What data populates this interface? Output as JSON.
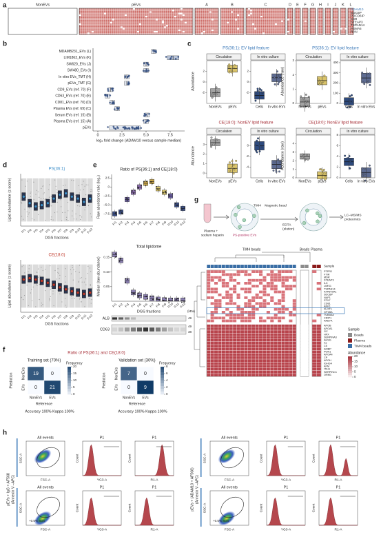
{
  "panel_labels": [
    "a",
    "b",
    "c",
    "d",
    "e",
    "f",
    "g",
    "h"
  ],
  "a": {
    "groups": [
      "NonEVs",
      "pEVs",
      "A",
      "B",
      "C",
      "D",
      "E",
      "F",
      "G",
      "H",
      "I",
      "J",
      "K",
      "L"
    ],
    "genes": [
      "ADAM10",
      "SDCBP",
      "PDCD6IP",
      "CD9",
      "STEAP3",
      "TSPAN14",
      "PSMA5",
      "RAN"
    ]
  },
  "b": {
    "categories": [
      "MDAMB231_EVs (L)",
      "LIM1863_EVs (K)",
      "SW620_EVs (J)",
      "SW480_EVs (I)",
      "In vitro EVs_TMT (H)",
      "pEVs_TMT (G)",
      "CD9_EVs (ref. 70) (F)",
      "CD63_EVs (ref. 70) (E)",
      "CD81_EVs (ref. 70) (D)",
      "Plasma EVs (ref. 69) (C)",
      "Serum EVs (ref. 15) (B)",
      "Plasma EVs (ref. 15) (A)",
      "pEVs"
    ],
    "values": [
      5.8,
      7.8,
      5.0,
      5.0,
      3.0,
      3.0,
      1.3,
      1.0,
      1.5,
      2.0,
      5.1,
      5.0,
      2.8
    ],
    "xlim": [
      -0.5,
      9
    ],
    "xticks": [
      0,
      2.5,
      {
        "value": 5,
        "label": "5.0"
      },
      7.5
    ],
    "xlabel": "log₂ fold change (ADAM10 versus sample median)"
  },
  "c": {
    "plots": [
      {
        "title": "PS(36:1): EV lipid feature",
        "title_color": "#3a78b8",
        "ylabel": "Abundance",
        "facets": [
          {
            "name": "Circulation",
            "groups": [
              "NonEVs",
              "pEVs"
            ],
            "values": [
              -2.0,
              2.5
            ],
            "colors": [
              "#a3a3a3",
              "#d9c36a"
            ],
            "ylim": [
              -4,
              4
            ],
            "yticks": [
              -2,
              0,
              2
            ]
          },
          {
            "name": "In vitro culture",
            "groups": [
              "Cells",
              "In vitro EVs"
            ],
            "values": [
              -2.5,
              0.8
            ],
            "colors": [
              "#2e4a7d",
              "#5d6b91"
            ],
            "ylim": [
              -4,
              4
            ],
            "yticks": [
              -2,
              0,
              2
            ]
          }
        ]
      },
      {
        "title": "PS(36:1): EV lipid feature",
        "title_color": "#3a78b8",
        "ylabel": "Abundance (raw)",
        "facets": [
          {
            "name": "Circulation",
            "groups": [
              "NonEVs",
              "pEVs"
            ],
            "values": [
              0.1,
              1.6
            ],
            "colors": [
              "#a3a3a3",
              "#d9c36a"
            ],
            "ylim": [
              0,
              3
            ],
            "yticks": [
              0,
              1,
              2,
              3
            ]
          },
          {
            "name": "In vitro culture",
            "groups": [
              "Cells",
              "In vitro EVs"
            ],
            "values": [
              20,
              250
            ],
            "colors": [
              "#2e4a7d",
              "#5d6b91"
            ],
            "ylim": [
              0,
              420
            ],
            "yticks": [
              0,
              100,
              200,
              300,
              400
            ]
          }
        ]
      },
      {
        "title": "CE(18:0): NonEV lipid feature",
        "title_color": "#a8323a",
        "ylabel": "Abundance",
        "facets": [
          {
            "name": "Circulation",
            "groups": [
              "NonEVs",
              "pEVs"
            ],
            "values": [
              3.2,
              0.5
            ],
            "colors": [
              "#a3a3a3",
              "#d9c36a"
            ],
            "ylim": [
              -0.5,
              4
            ],
            "yticks": [
              0,
              1,
              2,
              3
            ]
          },
          {
            "name": "In vitro culture",
            "groups": [
              "Cells",
              "In vitro EVs"
            ],
            "values": [
              0,
              -3.5
            ],
            "colors": [
              "#2e4a7d",
              "#5d6b91"
            ],
            "ylim": [
              -6,
              2
            ],
            "yticks": [
              -4,
              -2,
              0
            ]
          }
        ]
      },
      {
        "title": "CE(18:0): NonEV lipid feature",
        "title_color": "#a8323a",
        "ylabel": "Abundance (raw)",
        "facets": [
          {
            "name": "Circulation",
            "groups": [
              "NonEVs",
              "pEVs"
            ],
            "values": [
              2.5,
              0.3
            ],
            "colors": [
              "#a3a3a3",
              "#d9c36a"
            ],
            "ylim": [
              0,
              5
            ],
            "yticks": [
              0,
              1,
              2,
              3,
              4
            ]
          },
          {
            "name": "In vitro culture",
            "groups": [
              "Cells",
              "In vitro EVs"
            ],
            "values": [
              3,
              1
            ],
            "colors": [
              "#2e4a7d",
              "#5d6b91"
            ],
            "ylim": [
              0,
              8
            ],
            "yticks": [
              0,
              2,
              4,
              6,
              8
            ]
          }
        ]
      }
    ]
  },
  "d": {
    "fractions": [
      "Fr1",
      "Fr2",
      "Fr3",
      "Fr4",
      "Fr5",
      "Fr6",
      "Fr7",
      "Fr8",
      "Fr9",
      "Fr10",
      "Fr11",
      "Fr12"
    ],
    "ylabel": "Lipid abundance (z score)",
    "xlabel": "DGS fractions",
    "ylim": [
      -4,
      4
    ],
    "plots": [
      {
        "title": "PS(36:1)",
        "color": "#3d8ec9",
        "values": [
          0.5,
          -0.5,
          -1.0,
          -0.8,
          -0.5,
          0.2,
          0.8,
          1.0,
          0.5,
          0.2,
          -0.3,
          0.2
        ]
      },
      {
        "title": "CE(18:0)",
        "color": "#c0392b",
        "values": [
          1.0,
          1.2,
          1.0,
          0.8,
          0.5,
          0.2,
          -0.2,
          -0.5,
          -0.8,
          -1.0,
          -1.2,
          -1.0
        ]
      }
    ]
  },
  "e": {
    "fractions": [
      "Fr1",
      "Fr2",
      "Fr3",
      "Fr4",
      "Fr5",
      "Fr6",
      "Fr7",
      "Fr8",
      "Fr9",
      "Fr10",
      "Fr11",
      "Fr12"
    ],
    "xlabel": "DGS fractions",
    "top": {
      "title": "Ratio of PS(36:1) and CE(18:0)",
      "ylabel": "Raw abundance ratio (log₂)",
      "values": [
        -7.5,
        -7.0,
        -3.5,
        -1.5,
        0.0,
        1.0,
        1.5,
        -0.5,
        -1.5,
        -2.5,
        -5.0,
        -6.0
      ],
      "colors": [
        "#3b4f86",
        "#3b4f86",
        "#6b5fa0",
        "#8d6fb0",
        "#8d6fb0",
        "#c9a64b",
        "#c9a64b",
        "#d6c36c",
        "#d6c36c",
        "#6b5fa0",
        "#3b4f86",
        "#3b4f86"
      ],
      "ylim": [
        -9,
        3.5
      ],
      "yticks": [
        {
          "value": -7.5,
          "label": "−7.5"
        },
        {
          "value": -5,
          "label": "−5.0"
        },
        {
          "value": -2.5,
          "label": "−2.5"
        },
        0,
        2.5
      ]
    },
    "bottom": {
      "title": "Total lipidome",
      "ylabel": "Median (raw abundance)",
      "values": [
        0.16,
        0.14,
        0.07,
        0.03,
        0.02,
        0.015,
        0.01,
        0.006,
        0.004,
        0.003,
        0.003,
        0.003
      ],
      "color": "#8a7fb0",
      "ylim": [
        0,
        0.17
      ],
      "yticks": [
        0.05,
        {
          "value": 0.1,
          "label": "0.10"
        },
        0.15
      ]
    },
    "blot": {
      "bands": [
        "ALB",
        "CD63"
      ],
      "unit": "(kDa)",
      "markers": [
        49,
        49,
        38
      ]
    }
  },
  "f": {
    "title": "Ratio of PS(36:1) and CE(18:0)",
    "classes": [
      "NonEVs",
      "EVs"
    ],
    "ylabel": "Prediction",
    "xlabel": "Reference",
    "legend_title": "Frequency",
    "matrices": [
      {
        "title": "Training set (70%)",
        "values": [
          [
            19,
            0
          ],
          [
            0,
            21
          ]
        ],
        "colorbar_ticks": [
          0,
          5,
          10,
          15,
          20
        ],
        "footer": "Accuracy 100% Kappa 100%"
      },
      {
        "title": "Validation set (30%)",
        "values": [
          [
            7,
            0
          ],
          [
            0,
            9
          ]
        ],
        "colorbar_ticks": [
          0,
          2,
          4,
          6,
          8
        ],
        "footer": "Accuracy 100% Kappa 100%"
      }
    ]
  },
  "g": {
    "schematic": {
      "sample": "Plasma +",
      "sample2": "sodium heparin",
      "receptor": "TIM4",
      "bead": "Magnetic bead",
      "elution": "EDTA",
      "elution2": "(elution)",
      "vesicles": "PS-positive EVs",
      "readout": "LC–MS/MS",
      "readout2": "proteomics"
    },
    "groups": [
      "TIM4 beads",
      "Beads",
      "Plasma"
    ],
    "sample_label": "Sample",
    "genes_upper": [
      "PTPRJ",
      "FTIR",
      "MDR",
      "STEAP3",
      "ILK",
      "LIMS1",
      "TSPAN14",
      "ATP6V0A1",
      "SDCBP",
      "NAP1",
      "STX7",
      "CD81",
      "ANK1",
      "FLOT1",
      "GP1BA",
      "TUBA4A",
      "CRIP1",
      "RAB7A"
    ],
    "genes_lower": [
      "APOB",
      "APOA1",
      "GC",
      "HPX",
      "SERPINA3",
      "AHSG",
      "F2",
      "C5",
      "AMBP",
      "PON1",
      "APOA4",
      "CP",
      "APOH",
      "IGHG4",
      "AFM",
      "ITIH1",
      "SERPINC1",
      "ORM1"
    ],
    "legend": {
      "title": "Sample",
      "items": [
        {
          "name": "Beads",
          "color": "#8c8c8c"
        },
        {
          "name": "Plasma",
          "color": "#8b1a1a"
        },
        {
          "name": "TIM4 beads",
          "color": "#3a6ea5"
        }
      ],
      "scale_title": "Abundance",
      "scale_ticks": [
        20,
        15,
        10,
        5,
        0
      ]
    }
  },
  "h": {
    "conditions": [
      {
        "label": "pEVs + IgG + AF568",
        "sublabel": "(Annexin V –APC)"
      },
      {
        "label": "pEVs + (ADAM10 + AF568)",
        "sublabel": "(Annexin V –APC)"
      }
    ],
    "plot_titles": [
      "All events",
      "P1",
      "P1"
    ],
    "scatter_x": "FSC-A",
    "scatter_y": "SSC-A",
    "hist_y": "Count",
    "hist_x": [
      "YG3-A",
      "R1-A"
    ],
    "sds_note": "+0.5% SDS"
  }
}
